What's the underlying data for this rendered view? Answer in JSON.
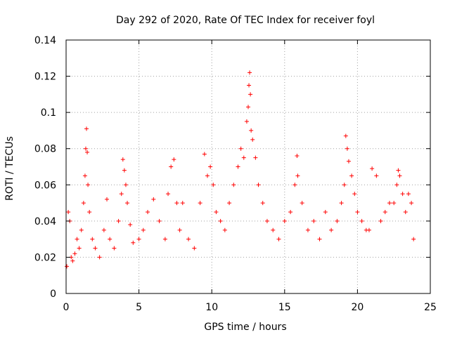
{
  "chart_data": {
    "type": "scatter",
    "title": "Day 292 of 2020, Rate Of TEC Index for receiver foyl",
    "xlabel": "GPS time / hours",
    "ylabel": "ROTI / TECUs",
    "xlim": [
      0,
      25
    ],
    "ylim": [
      0,
      0.14
    ],
    "xticks": [
      0,
      5,
      10,
      15,
      20,
      25
    ],
    "xtick_labels": [
      "0",
      "5",
      "10",
      "15",
      "20",
      "25"
    ],
    "yticks": [
      0,
      0.02,
      0.04,
      0.06,
      0.08,
      0.1,
      0.12,
      0.14
    ],
    "ytick_labels": [
      "0",
      "0.02",
      "0.04",
      "0.06",
      "0.08",
      "0.1",
      "0.12",
      "0.14"
    ],
    "grid": true,
    "marker": "+",
    "color": "#ff0000",
    "series": [
      {
        "name": "ROTI",
        "x": [
          0.05,
          0.15,
          0.25,
          0.35,
          0.45,
          0.6,
          0.75,
          0.9,
          1.05,
          1.2,
          1.3,
          1.35,
          1.4,
          1.45,
          1.5,
          1.6,
          1.8,
          2.0,
          2.3,
          2.6,
          2.8,
          3.0,
          3.3,
          3.6,
          3.8,
          3.9,
          4.0,
          4.1,
          4.2,
          4.4,
          4.6,
          5.0,
          5.3,
          5.6,
          6.0,
          6.4,
          6.8,
          7.0,
          7.2,
          7.4,
          7.6,
          7.8,
          8.0,
          8.4,
          8.8,
          9.2,
          9.5,
          9.7,
          9.9,
          10.1,
          10.3,
          10.6,
          10.9,
          11.2,
          11.5,
          11.8,
          12.0,
          12.2,
          12.4,
          12.5,
          12.55,
          12.6,
          12.65,
          12.7,
          12.8,
          13.0,
          13.2,
          13.5,
          13.8,
          14.2,
          14.6,
          15.0,
          15.4,
          15.7,
          15.85,
          15.9,
          16.2,
          16.6,
          17.0,
          17.4,
          17.8,
          18.2,
          18.6,
          18.9,
          19.1,
          19.2,
          19.3,
          19.4,
          19.6,
          19.8,
          20.0,
          20.3,
          20.6,
          20.8,
          21.0,
          21.3,
          21.6,
          21.9,
          22.2,
          22.5,
          22.7,
          22.8,
          22.9,
          23.1,
          23.3,
          23.5,
          23.7,
          23.85
        ],
        "y": [
          0.015,
          0.045,
          0.04,
          0.02,
          0.018,
          0.022,
          0.03,
          0.025,
          0.035,
          0.05,
          0.065,
          0.08,
          0.091,
          0.078,
          0.06,
          0.045,
          0.03,
          0.025,
          0.02,
          0.035,
          0.052,
          0.03,
          0.025,
          0.04,
          0.055,
          0.074,
          0.068,
          0.06,
          0.05,
          0.038,
          0.028,
          0.03,
          0.035,
          0.045,
          0.052,
          0.04,
          0.03,
          0.055,
          0.07,
          0.074,
          0.05,
          0.035,
          0.05,
          0.03,
          0.025,
          0.05,
          0.077,
          0.065,
          0.07,
          0.06,
          0.045,
          0.04,
          0.035,
          0.05,
          0.06,
          0.07,
          0.08,
          0.075,
          0.095,
          0.103,
          0.115,
          0.122,
          0.11,
          0.09,
          0.085,
          0.075,
          0.06,
          0.05,
          0.04,
          0.035,
          0.03,
          0.04,
          0.045,
          0.06,
          0.076,
          0.065,
          0.05,
          0.035,
          0.04,
          0.03,
          0.045,
          0.035,
          0.04,
          0.05,
          0.06,
          0.087,
          0.08,
          0.073,
          0.065,
          0.055,
          0.045,
          0.04,
          0.035,
          0.035,
          0.069,
          0.065,
          0.04,
          0.045,
          0.05,
          0.05,
          0.06,
          0.068,
          0.065,
          0.055,
          0.045,
          0.055,
          0.05,
          0.03
        ]
      }
    ]
  }
}
